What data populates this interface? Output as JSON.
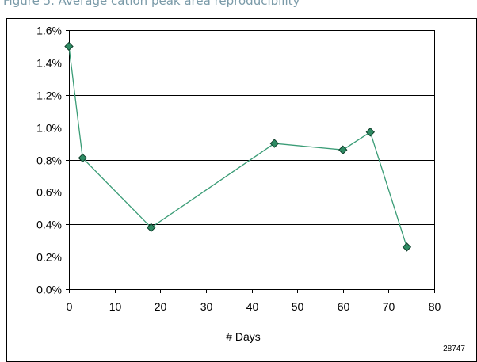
{
  "figure_caption": "Figure 5. Average cation peak area reproducibility",
  "figure_id": "28747",
  "colors": {
    "line": "#3a9c76",
    "marker_fill": "#2e8b63",
    "marker_stroke": "#0f3d2a",
    "grid": "#000000",
    "frame": "#000000"
  },
  "chart_data": {
    "type": "line",
    "title": "",
    "xlabel": "# Days",
    "ylabel": "",
    "xlim": [
      0,
      80
    ],
    "ylim": [
      0.0,
      1.6
    ],
    "x_ticks": [
      0,
      10,
      20,
      30,
      40,
      50,
      60,
      70,
      80
    ],
    "x_tick_labels": [
      "0",
      "10",
      "20",
      "30",
      "40",
      "50",
      "60",
      "70",
      "80"
    ],
    "y_ticks": [
      0.0,
      0.2,
      0.4,
      0.6,
      0.8,
      1.0,
      1.2,
      1.4,
      1.6
    ],
    "y_tick_labels": [
      "0.0%",
      "0.2%",
      "0.4%",
      "0.6%",
      "0.8%",
      "1.0%",
      "1.2%",
      "1.4%",
      "1.6%"
    ],
    "y_unit": "%",
    "grid": "horizontal",
    "legend": "none",
    "series": [
      {
        "marker": "diamond",
        "points": [
          {
            "x": 0,
            "y": 1.5
          },
          {
            "x": 3,
            "y": 0.81
          },
          {
            "x": 18,
            "y": 0.38
          },
          {
            "x": 45,
            "y": 0.9
          },
          {
            "x": 60,
            "y": 0.86
          },
          {
            "x": 66,
            "y": 0.97
          },
          {
            "x": 74,
            "y": 0.26
          }
        ]
      }
    ]
  }
}
